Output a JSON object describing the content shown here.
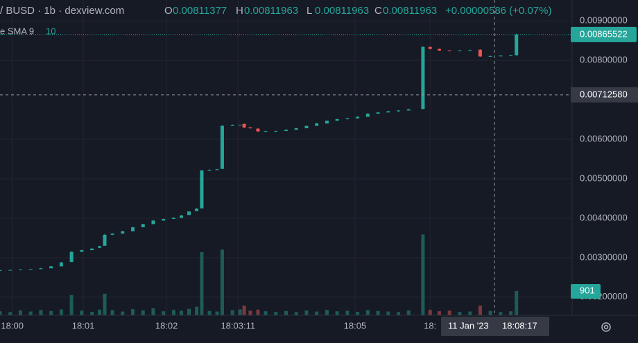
{
  "chart_data": {
    "type": "candlestick",
    "title": "/ BUSD · 1b · dexview.com",
    "header": [
      {
        "key": "O",
        "value": "0.00811377"
      },
      {
        "key": "H",
        "value": "0.00811963"
      },
      {
        "key": "L",
        "value": "0.00811963"
      },
      {
        "key": "C",
        "value": "0.00811963"
      }
    ],
    "change": "+0.00000586 (+0.07%)",
    "indicator": {
      "name": "e SMA 9",
      "value": "10"
    },
    "x": [
      0,
      2,
      4,
      6,
      8,
      10,
      12,
      14,
      16,
      18,
      19.5,
      20.5,
      22,
      24,
      26,
      28,
      30,
      32,
      34,
      35.5,
      37,
      38.5,
      39.5,
      41,
      42.5,
      43.5,
      45.5,
      47,
      47.8,
      49,
      50.5,
      52,
      54,
      56,
      58,
      60,
      62,
      64,
      66,
      68,
      70,
      72,
      74,
      76,
      78,
      80,
      82.8,
      84.2,
      86,
      88,
      90,
      92,
      94,
      96,
      98,
      100,
      101.1
    ],
    "open": [
      0.00268,
      0.00268,
      0.00269,
      0.0027,
      0.00271,
      0.00273,
      0.00278,
      0.00289,
      0.00315,
      0.00319,
      0.00325,
      0.0033,
      0.00358,
      0.00361,
      0.00367,
      0.00377,
      0.00385,
      0.00394,
      0.00398,
      0.00401,
      0.00408,
      0.00418,
      0.00425,
      0.00521,
      0.00522,
      0.00525,
      0.00634,
      0.00636,
      0.00639,
      0.0063,
      0.00627,
      0.0062,
      0.00621,
      0.00621,
      0.00624,
      0.00628,
      0.00634,
      0.0064,
      0.00647,
      0.00651,
      0.00653,
      0.00657,
      0.00665,
      0.00668,
      0.00671,
      0.00673,
      0.00677,
      0.00834,
      0.00829,
      0.00825,
      0.00824,
      0.00825,
      0.00827,
      0.0081,
      0.00811,
      0.00812,
      0.00813
    ],
    "high": [
      0.00269,
      0.00269,
      0.0027,
      0.00271,
      0.00274,
      0.00279,
      0.00289,
      0.00316,
      0.0032,
      0.00324,
      0.0033,
      0.0036,
      0.00362,
      0.00368,
      0.00378,
      0.00386,
      0.00395,
      0.00399,
      0.00402,
      0.00408,
      0.00418,
      0.00426,
      0.00522,
      0.00524,
      0.00525,
      0.00636,
      0.00638,
      0.00637,
      0.0064,
      0.00631,
      0.00628,
      0.00622,
      0.00622,
      0.00625,
      0.00629,
      0.00635,
      0.00642,
      0.00648,
      0.00652,
      0.00654,
      0.00658,
      0.00666,
      0.00669,
      0.00672,
      0.00674,
      0.00677,
      0.00836,
      0.00835,
      0.0083,
      0.00826,
      0.00826,
      0.00827,
      0.00828,
      0.00812,
      0.00813,
      0.00814,
      0.00868
    ],
    "low": [
      0.00267,
      0.00268,
      0.00268,
      0.0027,
      0.00271,
      0.00273,
      0.00278,
      0.00289,
      0.00315,
      0.00319,
      0.00324,
      0.0033,
      0.00357,
      0.00361,
      0.00367,
      0.00377,
      0.00385,
      0.00394,
      0.00398,
      0.00401,
      0.00408,
      0.00418,
      0.00425,
      0.0052,
      0.00522,
      0.00525,
      0.00634,
      0.00635,
      0.00628,
      0.00627,
      0.00619,
      0.00619,
      0.0062,
      0.00621,
      0.00624,
      0.00628,
      0.00634,
      0.0064,
      0.00647,
      0.0065,
      0.00653,
      0.00657,
      0.00665,
      0.00668,
      0.0067,
      0.00673,
      0.00676,
      0.00828,
      0.00824,
      0.00823,
      0.00823,
      0.00824,
      0.00809,
      0.00809,
      0.0081,
      0.00811,
      0.00812
    ],
    "close": [
      0.00268,
      0.00269,
      0.0027,
      0.00271,
      0.00273,
      0.00278,
      0.00288,
      0.00315,
      0.00319,
      0.00323,
      0.00329,
      0.00358,
      0.00361,
      0.00367,
      0.00377,
      0.00385,
      0.00394,
      0.00398,
      0.00401,
      0.00407,
      0.00417,
      0.00424,
      0.00521,
      0.00522,
      0.00524,
      0.00634,
      0.00636,
      0.00637,
      0.0063,
      0.00628,
      0.0062,
      0.00621,
      0.00621,
      0.00624,
      0.00628,
      0.00634,
      0.0064,
      0.00647,
      0.00651,
      0.00653,
      0.00657,
      0.00665,
      0.00668,
      0.00671,
      0.00673,
      0.00676,
      0.00834,
      0.00829,
      0.00825,
      0.00824,
      0.00825,
      0.00826,
      0.0081,
      0.00811,
      0.00812,
      0.00813,
      0.00865522
    ],
    "volume": [
      150,
      120,
      180,
      140,
      200,
      160,
      220,
      750,
      170,
      130,
      210,
      800,
      190,
      140,
      230,
      180,
      260,
      150,
      200,
      170,
      240,
      320,
      2340,
      160,
      140,
      2440,
      190,
      220,
      360,
      170,
      210,
      150,
      130,
      160,
      120,
      180,
      140,
      200,
      150,
      170,
      130,
      190,
      160,
      140,
      120,
      180,
      3000,
      200,
      150,
      170,
      130,
      140,
      360,
      160,
      120,
      150,
      901
    ],
    "up_color": "#26a69a",
    "down_color": "#ef5350",
    "volume_up_color": "#1d5c57",
    "volume_down_color": "#7a3a3f",
    "xlim": [
      0,
      112
    ],
    "ylim": [
      0.00154,
      0.00953
    ],
    "vlim": [
      0,
      11700
    ],
    "xticks": [
      {
        "value": 2.4,
        "label": "18:00"
      },
      {
        "value": 16.3,
        "label": "18:01"
      },
      {
        "value": 32.6,
        "label": "18:02"
      },
      {
        "value": 46.6,
        "label": "18:03:11"
      },
      {
        "value": 69.5,
        "label": "18:05"
      },
      {
        "value": 84.2,
        "label": "18:"
      }
    ],
    "yticks": [
      {
        "value": 0.002,
        "label": "0.00200000"
      },
      {
        "value": 0.003,
        "label": "0.00300000"
      },
      {
        "value": 0.004,
        "label": "0.00400000"
      },
      {
        "value": 0.005,
        "label": "0.00500000"
      },
      {
        "value": 0.006,
        "label": "0.00600000"
      },
      {
        "value": 0.008,
        "label": "0.00800000"
      },
      {
        "value": 0.009,
        "label": "0.00900000"
      }
    ],
    "grid": true,
    "crosshair": {
      "x": 96.8,
      "y": 0.0071258,
      "y_label": "0.00712580",
      "date_label": "11 Jan '23",
      "time_label": "18:08:17"
    }
  }
}
